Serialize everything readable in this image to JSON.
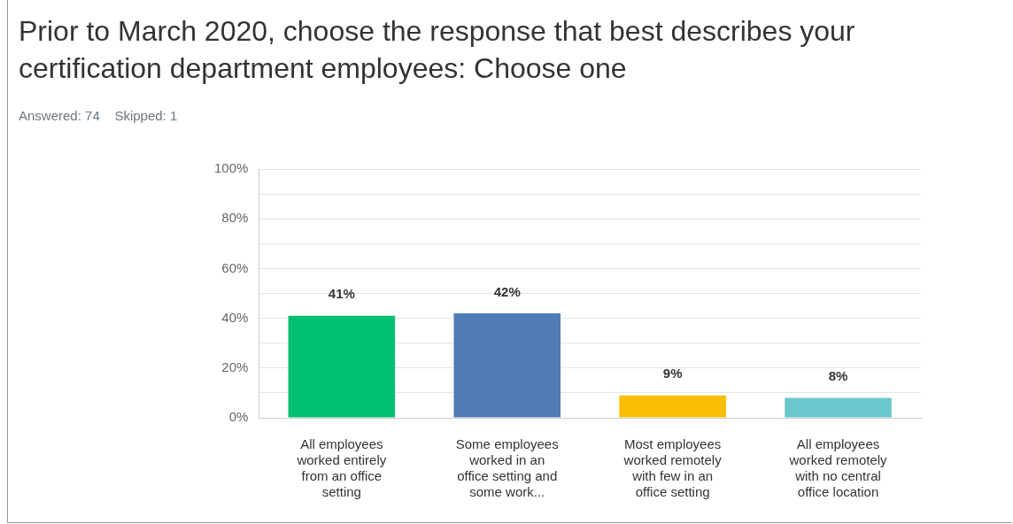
{
  "chart_data": {
    "type": "bar",
    "title": "Prior to March 2020, choose the response that best describes your certification department employees: Choose one",
    "subtitle": "Answered: 74    Skipped: 1",
    "categories": [
      "All employees worked entirely from an office setting",
      "Some employees worked in an office setting and some work...",
      "Most employees worked remotely with few in an office setting",
      "All employees worked remotely with no central office location"
    ],
    "values": [
      41,
      42,
      9,
      8
    ],
    "colors": [
      "#00bf6f",
      "#507cb6",
      "#f9be00",
      "#6bc8cd"
    ],
    "value_labels": [
      "41%",
      "42%",
      "9%",
      "8%"
    ],
    "ylim": [
      0,
      100
    ],
    "yticks": [
      {
        "value": 0,
        "label": "0%"
      },
      {
        "value": 10,
        "label": null
      },
      {
        "value": 20,
        "label": "20%"
      },
      {
        "value": 30,
        "label": null
      },
      {
        "value": 40,
        "label": "40%"
      },
      {
        "value": 50,
        "label": null
      },
      {
        "value": 60,
        "label": "60%"
      },
      {
        "value": 70,
        "label": null
      },
      {
        "value": 80,
        "label": "80%"
      },
      {
        "value": 90,
        "label": null
      },
      {
        "value": 100,
        "label": "100%"
      }
    ],
    "grid": "y",
    "legend": false
  }
}
